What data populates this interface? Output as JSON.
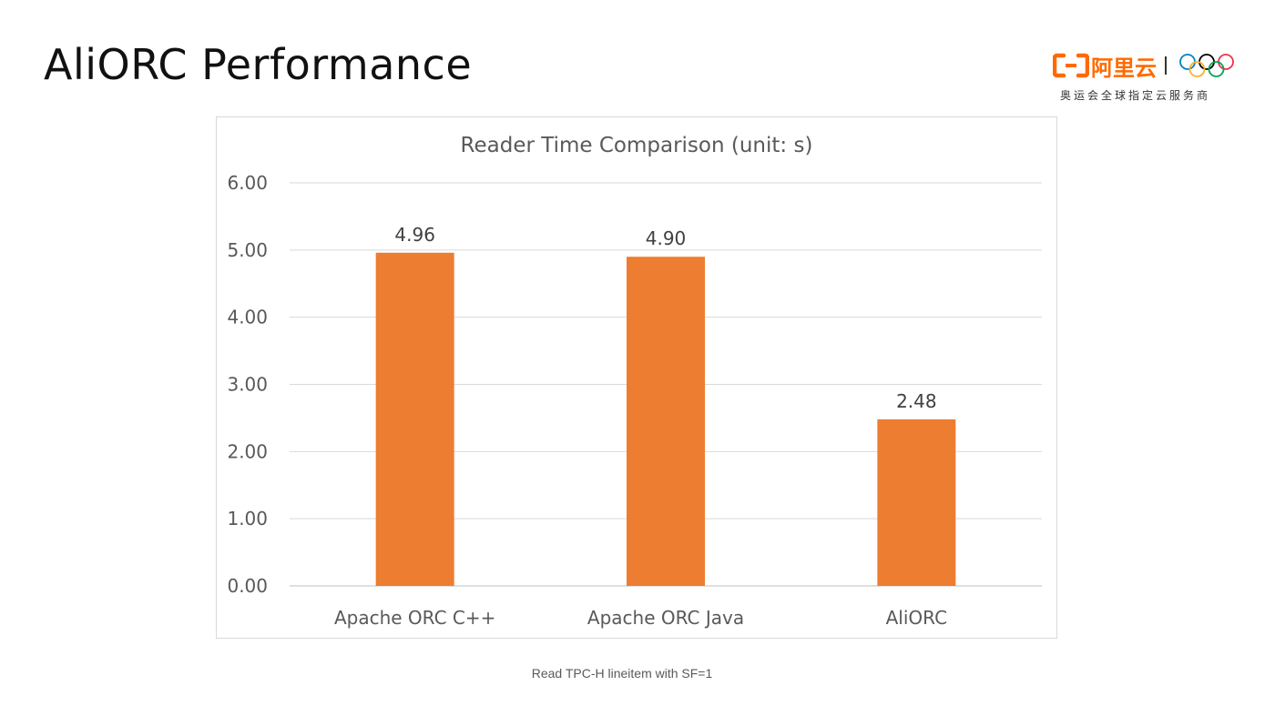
{
  "slide": {
    "title": "AliORC Performance",
    "caption": "Read TPC-H lineitem with SF=1"
  },
  "logo": {
    "brand_name": "阿里云",
    "tagline": "奥运会全球指定云服务商",
    "brand_color": "#ff6a00",
    "icons": [
      "aliyun-logo-icon",
      "olympic-rings-icon"
    ]
  },
  "chart_data": {
    "type": "bar",
    "title": "Reader Time Comparison (unit: s)",
    "categories": [
      "Apache ORC C++",
      "Apache ORC Java",
      "AliORC"
    ],
    "values": [
      4.96,
      4.9,
      2.48
    ],
    "value_labels": [
      "4.96",
      "4.90",
      "2.48"
    ],
    "ylim": [
      0,
      6
    ],
    "yticks": [
      "0.00",
      "1.00",
      "2.00",
      "3.00",
      "4.00",
      "5.00",
      "6.00"
    ],
    "xlabel": "",
    "ylabel": "",
    "grid": true,
    "legend": "none",
    "bar_color": "#ed7d31"
  }
}
